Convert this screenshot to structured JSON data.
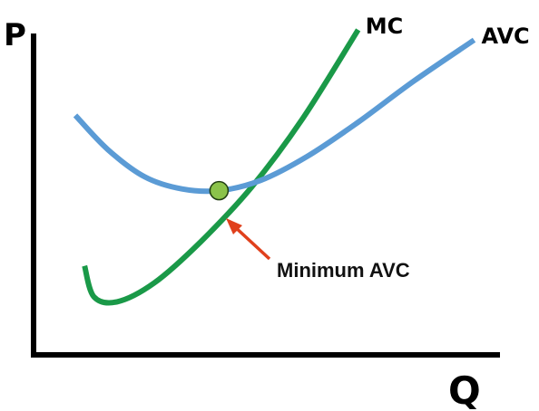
{
  "chart_data": {
    "type": "line",
    "title": "",
    "xlabel": "Q",
    "ylabel": "P",
    "grid": false,
    "legend": "none",
    "xlim": [
      0,
      10
    ],
    "ylim": [
      0,
      10
    ],
    "series": [
      {
        "name": "MC",
        "color": "#1a9948",
        "x": [
          1.1,
          1.3,
          1.8,
          2.6,
          3.6,
          4.7,
          5.8,
          7.0
        ],
        "y": [
          2.6,
          1.7,
          1.55,
          2.1,
          3.3,
          4.9,
          6.9,
          9.5
        ]
      },
      {
        "name": "AVC",
        "color": "#5b9bd5",
        "x": [
          0.9,
          1.6,
          2.4,
          3.2,
          4.0,
          4.9,
          5.9,
          7.0,
          8.2,
          9.5
        ],
        "y": [
          7.0,
          6.0,
          5.2,
          4.85,
          4.8,
          5.1,
          5.8,
          6.8,
          8.0,
          9.2
        ]
      }
    ],
    "point": {
      "label": "Minimum AVC",
      "x": 4.0,
      "y": 4.8,
      "color": "#8bc34a"
    },
    "annotation": {
      "text": "Minimum AVC",
      "arrow_color": "#e0401c"
    }
  }
}
